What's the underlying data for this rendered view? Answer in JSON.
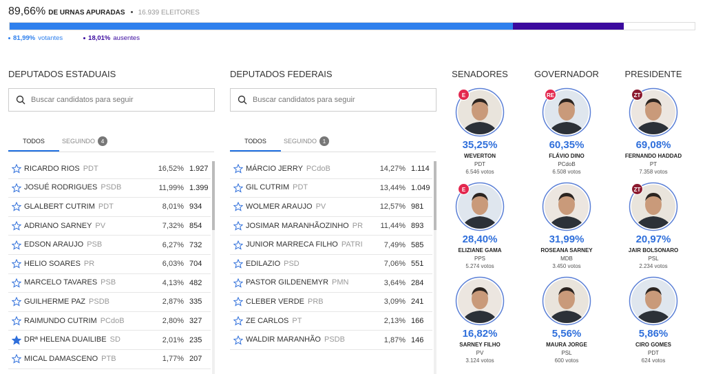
{
  "header": {
    "apuradas_pct": "89,66%",
    "apuradas_label": "DE URNAS APURADAS",
    "eleitores": "16.939 ELEITORES",
    "apuradas": 89.66,
    "votantes": {
      "value": 81.99,
      "pct": "81,99%",
      "label": "votantes",
      "color": "#2f80ed"
    },
    "ausentes": {
      "value": 18.01,
      "pct": "18,01%",
      "label": "ausentes",
      "color": "#3b0a9e"
    }
  },
  "search_placeholder": "Buscar candidatos para seguir",
  "lists": [
    {
      "title": "DEPUTADOS ESTADUAIS",
      "tabs": {
        "all": "TODOS",
        "following": "SEGUINDO",
        "following_count": "4"
      },
      "rows": [
        {
          "name": "RICARDO RIOS",
          "party": "PDT",
          "pct": "16,52%",
          "votes": "1.927",
          "followed": false
        },
        {
          "name": "JOSUÉ RODRIGUES",
          "party": "PSDB",
          "pct": "11,99%",
          "votes": "1.399",
          "followed": false
        },
        {
          "name": "GLALBERT CUTRIM",
          "party": "PDT",
          "pct": "8,01%",
          "votes": "934",
          "followed": false
        },
        {
          "name": "ADRIANO SARNEY",
          "party": "PV",
          "pct": "7,32%",
          "votes": "854",
          "followed": false
        },
        {
          "name": "EDSON ARAUJO",
          "party": "PSB",
          "pct": "6,27%",
          "votes": "732",
          "followed": false
        },
        {
          "name": "HELIO SOARES",
          "party": "PR",
          "pct": "6,03%",
          "votes": "704",
          "followed": false
        },
        {
          "name": "MARCELO TAVARES",
          "party": "PSB",
          "pct": "4,13%",
          "votes": "482",
          "followed": false
        },
        {
          "name": "GUILHERME PAZ",
          "party": "PSDB",
          "pct": "2,87%",
          "votes": "335",
          "followed": false
        },
        {
          "name": "RAIMUNDO CUTRIM",
          "party": "PCdoB",
          "pct": "2,80%",
          "votes": "327",
          "followed": false
        },
        {
          "name": "DRª HELENA DUAILIBE",
          "party": "SD",
          "pct": "2,01%",
          "votes": "235",
          "followed": true
        },
        {
          "name": "MICAL DAMASCENO",
          "party": "PTB",
          "pct": "1,77%",
          "votes": "207",
          "followed": false
        }
      ]
    },
    {
      "title": "DEPUTADOS FEDERAIS",
      "tabs": {
        "all": "TODOS",
        "following": "SEGUINDO",
        "following_count": "1"
      },
      "rows": [
        {
          "name": "MÁRCIO JERRY",
          "party": "PCdoB",
          "pct": "14,27%",
          "votes": "1.114",
          "followed": false
        },
        {
          "name": "GIL CUTRIM",
          "party": "PDT",
          "pct": "13,44%",
          "votes": "1.049",
          "followed": false
        },
        {
          "name": "WOLMER ARAUJO",
          "party": "PV",
          "pct": "12,57%",
          "votes": "981",
          "followed": false
        },
        {
          "name": "JOSIMAR MARANHÃOZINHO",
          "party": "PR",
          "pct": "11,44%",
          "votes": "893",
          "followed": false
        },
        {
          "name": "JUNIOR MARRECA FILHO",
          "party": "PATRI",
          "pct": "7,49%",
          "votes": "585",
          "followed": false
        },
        {
          "name": "EDILAZIO",
          "party": "PSD",
          "pct": "7,06%",
          "votes": "551",
          "followed": false
        },
        {
          "name": "PASTOR GILDENEMYR",
          "party": "PMN",
          "pct": "3,64%",
          "votes": "284",
          "followed": false
        },
        {
          "name": "CLEBER VERDE",
          "party": "PRB",
          "pct": "3,09%",
          "votes": "241",
          "followed": false
        },
        {
          "name": "ZE CARLOS",
          "party": "PT",
          "pct": "2,13%",
          "votes": "166",
          "followed": false
        },
        {
          "name": "WALDIR MARANHÃO",
          "party": "PSDB",
          "pct": "1,87%",
          "votes": "146",
          "followed": false
        }
      ]
    }
  ],
  "races": [
    {
      "title": "SENADORES",
      "candidates": [
        {
          "badge": "E",
          "pct": "35,25%",
          "name": "WEVERTON",
          "party": "PDT",
          "votes": "6.546 votos"
        },
        {
          "badge": "E",
          "pct": "28,40%",
          "name": "ELIZIANE GAMA",
          "party": "PPS",
          "votes": "5.274 votos"
        },
        {
          "pct": "16,82%",
          "name": "SARNEY FILHO",
          "party": "PV",
          "votes": "3.124 votos"
        }
      ]
    },
    {
      "title": "GOVERNADOR",
      "candidates": [
        {
          "badge": "RE",
          "pct": "60,35%",
          "name": "FLÁVIO DINO",
          "party": "PCdoB",
          "votes": "6.508 votos"
        },
        {
          "pct": "31,99%",
          "name": "ROSEANA SARNEY",
          "party": "MDB",
          "votes": "3.450 votos"
        },
        {
          "pct": "5,56%",
          "name": "MAURA JORGE",
          "party": "PSL",
          "votes": "600 votos"
        }
      ]
    },
    {
      "title": "PRESIDENTE",
      "candidates": [
        {
          "badge": "ZT",
          "pct": "69,08%",
          "name": "FERNANDO HADDAD",
          "party": "PT",
          "votes": "7.358 votos"
        },
        {
          "badge": "ZT",
          "pct": "20,97%",
          "name": "JAIR BOLSONARO",
          "party": "PSL",
          "votes": "2.234 votos"
        },
        {
          "pct": "5,86%",
          "name": "CIRO GOMES",
          "party": "PDT",
          "votes": "624 votos"
        }
      ]
    }
  ]
}
